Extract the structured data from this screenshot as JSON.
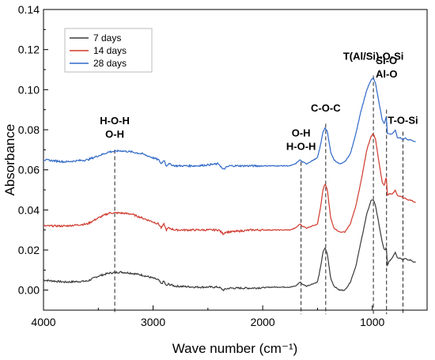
{
  "chart_data": {
    "type": "line",
    "xlabel": "Wave number (cm⁻¹)",
    "ylabel": "Absorbance",
    "xlim": [
      4000,
      500
    ],
    "ylim": [
      -0.01,
      0.14
    ],
    "x_reversed": true,
    "x_ticks": [
      4000,
      3000,
      2000,
      1000
    ],
    "y_ticks": [
      "0.00",
      "0.02",
      "0.04",
      "0.06",
      "0.08",
      "0.10",
      "0.12",
      "0.14"
    ],
    "grid": false,
    "legend_position": "top-left",
    "series": [
      {
        "name": "7 days",
        "color": "#3a3a3a",
        "points": [
          [
            4000,
            0.005
          ],
          [
            3800,
            0.004
          ],
          [
            3600,
            0.0045
          ],
          [
            3500,
            0.007
          ],
          [
            3400,
            0.0085
          ],
          [
            3300,
            0.009
          ],
          [
            3200,
            0.0085
          ],
          [
            3100,
            0.0075
          ],
          [
            3000,
            0.006
          ],
          [
            2950,
            0.005
          ],
          [
            2925,
            0.003
          ],
          [
            2900,
            0.0045
          ],
          [
            2880,
            0.002
          ],
          [
            2860,
            0.003
          ],
          [
            2800,
            0.002
          ],
          [
            2600,
            0.0015
          ],
          [
            2400,
            0.0015
          ],
          [
            2360,
            0.0
          ],
          [
            2340,
            0.0005
          ],
          [
            2300,
            0.001
          ],
          [
            2100,
            0.001
          ],
          [
            1900,
            0.0015
          ],
          [
            1750,
            0.0015
          ],
          [
            1700,
            0.002
          ],
          [
            1660,
            0.004
          ],
          [
            1640,
            0.003
          ],
          [
            1600,
            0.002
          ],
          [
            1500,
            0.004
          ],
          [
            1470,
            0.012
          ],
          [
            1450,
            0.019
          ],
          [
            1430,
            0.021
          ],
          [
            1410,
            0.018
          ],
          [
            1380,
            0.006
          ],
          [
            1350,
            0.002
          ],
          [
            1300,
            0.0
          ],
          [
            1250,
            0.0
          ],
          [
            1200,
            0.004
          ],
          [
            1150,
            0.012
          ],
          [
            1100,
            0.025
          ],
          [
            1050,
            0.038
          ],
          [
            1010,
            0.045
          ],
          [
            990,
            0.045
          ],
          [
            970,
            0.042
          ],
          [
            940,
            0.033
          ],
          [
            910,
            0.024
          ],
          [
            890,
            0.02
          ],
          [
            880,
            0.02
          ],
          [
            870,
            0.022
          ],
          [
            865,
            0.012
          ],
          [
            850,
            0.014
          ],
          [
            820,
            0.016
          ],
          [
            800,
            0.018
          ],
          [
            790,
            0.019
          ],
          [
            770,
            0.016
          ],
          [
            740,
            0.016
          ],
          [
            720,
            0.015
          ],
          [
            700,
            0.016
          ],
          [
            680,
            0.015
          ],
          [
            650,
            0.015
          ],
          [
            620,
            0.014
          ],
          [
            600,
            0.014
          ]
        ]
      },
      {
        "name": "14 days",
        "color": "#d03a2e",
        "points": [
          [
            4000,
            0.032
          ],
          [
            3800,
            0.032
          ],
          [
            3600,
            0.033
          ],
          [
            3500,
            0.036
          ],
          [
            3400,
            0.0385
          ],
          [
            3300,
            0.0385
          ],
          [
            3200,
            0.038
          ],
          [
            3100,
            0.036
          ],
          [
            3000,
            0.034
          ],
          [
            2950,
            0.033
          ],
          [
            2925,
            0.031
          ],
          [
            2900,
            0.033
          ],
          [
            2880,
            0.03
          ],
          [
            2860,
            0.031
          ],
          [
            2800,
            0.03
          ],
          [
            2600,
            0.03
          ],
          [
            2400,
            0.03
          ],
          [
            2360,
            0.028
          ],
          [
            2340,
            0.029
          ],
          [
            2300,
            0.029
          ],
          [
            2100,
            0.03
          ],
          [
            1900,
            0.03
          ],
          [
            1750,
            0.03
          ],
          [
            1700,
            0.031
          ],
          [
            1660,
            0.033
          ],
          [
            1640,
            0.032
          ],
          [
            1600,
            0.031
          ],
          [
            1500,
            0.033
          ],
          [
            1470,
            0.042
          ],
          [
            1450,
            0.05
          ],
          [
            1430,
            0.053
          ],
          [
            1410,
            0.05
          ],
          [
            1380,
            0.036
          ],
          [
            1350,
            0.031
          ],
          [
            1300,
            0.029
          ],
          [
            1250,
            0.029
          ],
          [
            1200,
            0.033
          ],
          [
            1150,
            0.042
          ],
          [
            1100,
            0.055
          ],
          [
            1050,
            0.07
          ],
          [
            1010,
            0.077
          ],
          [
            990,
            0.078
          ],
          [
            970,
            0.075
          ],
          [
            940,
            0.064
          ],
          [
            910,
            0.054
          ],
          [
            890,
            0.052
          ],
          [
            880,
            0.055
          ],
          [
            870,
            0.057
          ],
          [
            865,
            0.047
          ],
          [
            850,
            0.048
          ],
          [
            820,
            0.048
          ],
          [
            800,
            0.049
          ],
          [
            790,
            0.05
          ],
          [
            770,
            0.047
          ],
          [
            740,
            0.047
          ],
          [
            720,
            0.046
          ],
          [
            700,
            0.046
          ],
          [
            680,
            0.045
          ],
          [
            650,
            0.045
          ],
          [
            620,
            0.044
          ],
          [
            600,
            0.044
          ]
        ]
      },
      {
        "name": "28 days",
        "color": "#2f68c8",
        "points": [
          [
            4000,
            0.065
          ],
          [
            3800,
            0.064
          ],
          [
            3600,
            0.065
          ],
          [
            3500,
            0.067
          ],
          [
            3400,
            0.069
          ],
          [
            3300,
            0.0695
          ],
          [
            3200,
            0.069
          ],
          [
            3100,
            0.068
          ],
          [
            3000,
            0.066
          ],
          [
            2950,
            0.065
          ],
          [
            2925,
            0.063
          ],
          [
            2900,
            0.065
          ],
          [
            2880,
            0.062
          ],
          [
            2860,
            0.063
          ],
          [
            2800,
            0.062
          ],
          [
            2600,
            0.062
          ],
          [
            2400,
            0.063
          ],
          [
            2360,
            0.06
          ],
          [
            2340,
            0.061
          ],
          [
            2300,
            0.062
          ],
          [
            2100,
            0.062
          ],
          [
            1900,
            0.062
          ],
          [
            1750,
            0.062
          ],
          [
            1700,
            0.063
          ],
          [
            1660,
            0.065
          ],
          [
            1640,
            0.064
          ],
          [
            1600,
            0.063
          ],
          [
            1500,
            0.066
          ],
          [
            1470,
            0.073
          ],
          [
            1450,
            0.079
          ],
          [
            1430,
            0.081
          ],
          [
            1410,
            0.079
          ],
          [
            1380,
            0.069
          ],
          [
            1350,
            0.065
          ],
          [
            1300,
            0.063
          ],
          [
            1250,
            0.064
          ],
          [
            1200,
            0.068
          ],
          [
            1150,
            0.078
          ],
          [
            1100,
            0.09
          ],
          [
            1050,
            0.1
          ],
          [
            1010,
            0.105
          ],
          [
            990,
            0.106
          ],
          [
            970,
            0.103
          ],
          [
            940,
            0.094
          ],
          [
            910,
            0.085
          ],
          [
            890,
            0.083
          ],
          [
            880,
            0.085
          ],
          [
            870,
            0.087
          ],
          [
            865,
            0.078
          ],
          [
            850,
            0.078
          ],
          [
            820,
            0.078
          ],
          [
            800,
            0.079
          ],
          [
            790,
            0.08
          ],
          [
            770,
            0.076
          ],
          [
            740,
            0.076
          ],
          [
            720,
            0.075
          ],
          [
            700,
            0.076
          ],
          [
            680,
            0.075
          ],
          [
            650,
            0.075
          ],
          [
            620,
            0.074
          ],
          [
            600,
            0.074
          ]
        ]
      }
    ],
    "annotations": [
      {
        "id": "hoh-oh",
        "x": 3350,
        "lines": [
          "H-O-H",
          "O-H"
        ],
        "y_text": 0.076,
        "y_line_top": 0.07
      },
      {
        "id": "oh-hoh",
        "x": 1650,
        "lines": [
          "O-H",
          "H-O-H"
        ],
        "y_text": 0.07,
        "y_line_top": 0.064
      },
      {
        "id": "coc",
        "x": 1425,
        "lines": [
          "C-O-C"
        ],
        "y_text": 0.089,
        "y_line_top": 0.083
      },
      {
        "id": "tal-si",
        "x": 990,
        "lines": [
          "T(Al/Si)-O-Si"
        ],
        "y_text": 0.115,
        "y_line_top": 0.107
      },
      {
        "id": "sio-alo",
        "x": 870,
        "lines": [
          "Si-O",
          "Al-O"
        ],
        "y_text": 0.106,
        "y_line_top": 0.09
      },
      {
        "id": "tosi",
        "x": 720,
        "lines": [
          "T-O-Si"
        ],
        "y_text": 0.083,
        "y_line_top": 0.079
      }
    ],
    "annotation_line_bottom": -0.012
  }
}
